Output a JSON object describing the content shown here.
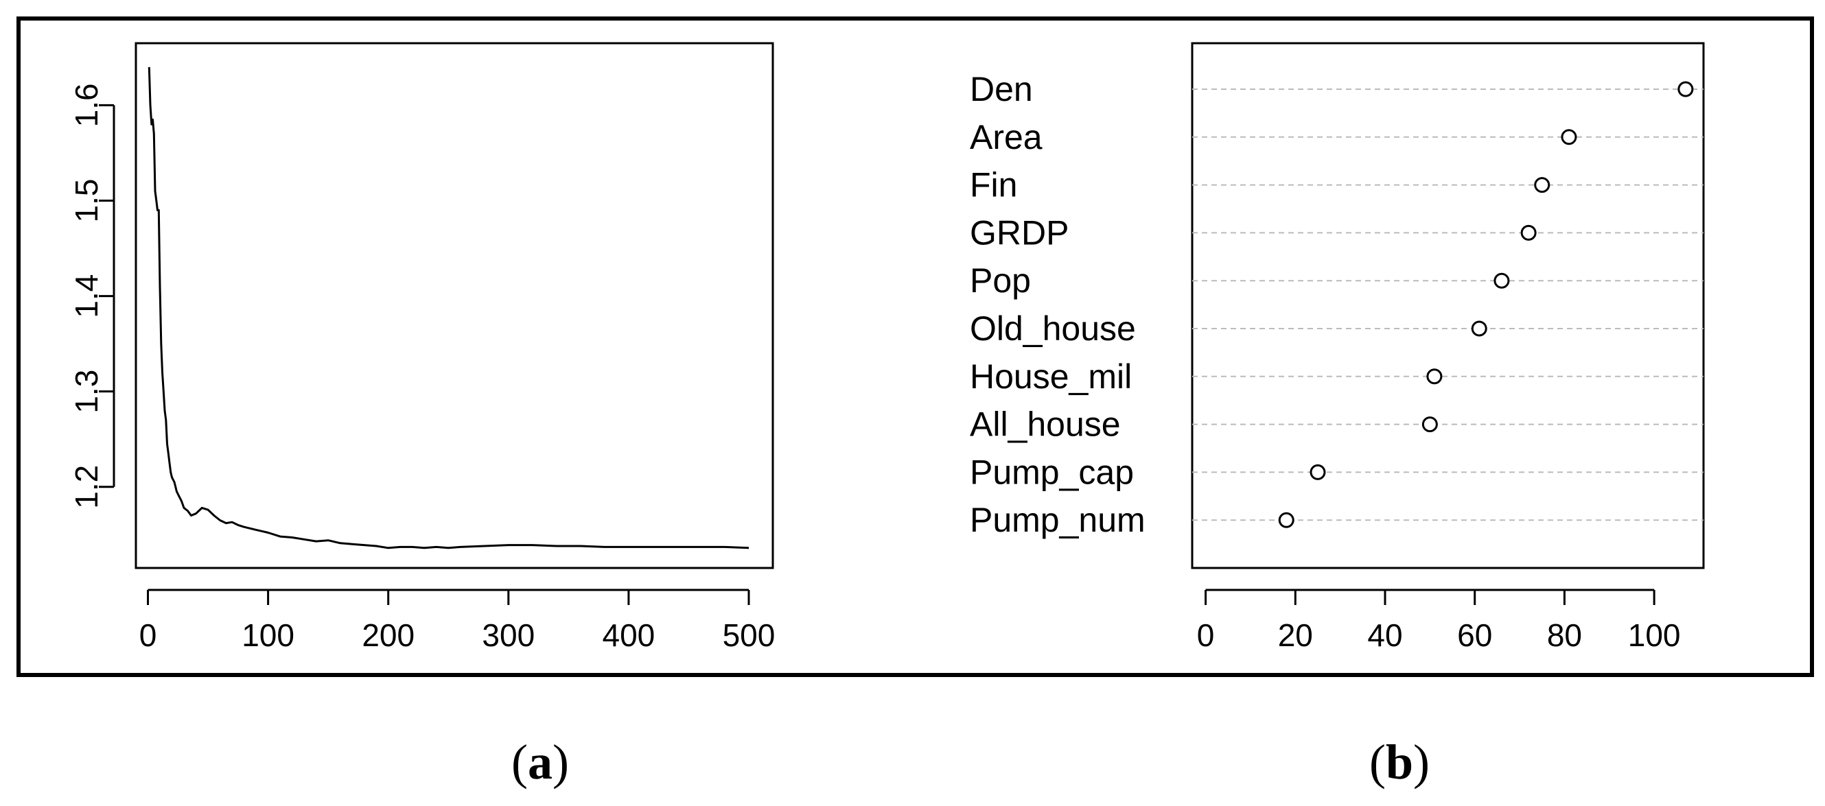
{
  "panels": {
    "a": {
      "caption_open": "(",
      "caption_letter": "a",
      "caption_close": ")"
    },
    "b": {
      "caption_open": "(",
      "caption_letter": "b",
      "caption_close": ")"
    }
  },
  "chart_data": [
    {
      "id": "a",
      "type": "line",
      "title": "",
      "xlabel": "",
      "ylabel": "",
      "xlim": [
        -10,
        520
      ],
      "ylim": [
        1.115,
        1.665
      ],
      "xticks": [
        0,
        100,
        200,
        300,
        400,
        500
      ],
      "yticks": [
        1.2,
        1.3,
        1.4,
        1.5,
        1.6
      ],
      "ytick_labels": [
        "1.2",
        "1.3",
        "1.4",
        "1.5",
        "1.6"
      ],
      "grid": false,
      "line_color": "#000000",
      "series": [
        {
          "x": [
            1,
            2,
            3,
            4,
            5,
            6,
            7,
            8,
            9,
            10,
            11,
            12,
            13,
            14,
            15,
            16,
            17,
            18,
            19,
            20,
            22,
            24,
            26,
            28,
            30,
            33,
            36,
            40,
            45,
            50,
            55,
            60,
            65,
            70,
            75,
            80,
            90,
            100,
            110,
            120,
            130,
            140,
            150,
            160,
            170,
            180,
            190,
            200,
            210,
            220,
            230,
            240,
            250,
            260,
            280,
            300,
            320,
            340,
            360,
            380,
            400,
            420,
            440,
            460,
            480,
            500
          ],
          "y": [
            1.64,
            1.6,
            1.58,
            1.585,
            1.57,
            1.51,
            1.5,
            1.49,
            1.49,
            1.41,
            1.35,
            1.32,
            1.3,
            1.28,
            1.27,
            1.245,
            1.235,
            1.225,
            1.215,
            1.21,
            1.205,
            1.195,
            1.19,
            1.185,
            1.178,
            1.175,
            1.17,
            1.172,
            1.178,
            1.176,
            1.17,
            1.165,
            1.162,
            1.163,
            1.16,
            1.158,
            1.155,
            1.152,
            1.148,
            1.147,
            1.145,
            1.143,
            1.144,
            1.141,
            1.14,
            1.139,
            1.138,
            1.136,
            1.137,
            1.137,
            1.136,
            1.137,
            1.136,
            1.137,
            1.138,
            1.139,
            1.139,
            1.138,
            1.138,
            1.137,
            1.137,
            1.137,
            1.137,
            1.137,
            1.137,
            1.136
          ]
        }
      ]
    },
    {
      "id": "b",
      "type": "scatter",
      "title": "",
      "xlabel": "",
      "ylabel": "",
      "xlim": [
        -3,
        111
      ],
      "xticks": [
        0,
        20,
        40,
        60,
        80,
        100
      ],
      "grid": true,
      "grid_color": "#bbbbbb",
      "categories": [
        "Den",
        "Area",
        "Fin",
        "GRDP",
        "Pop",
        "Old_house",
        "House_mil",
        "All_house",
        "Pump_cap",
        "Pump_num"
      ],
      "values": [
        107,
        81,
        75,
        72,
        66,
        61,
        51,
        50,
        25,
        18
      ]
    }
  ]
}
